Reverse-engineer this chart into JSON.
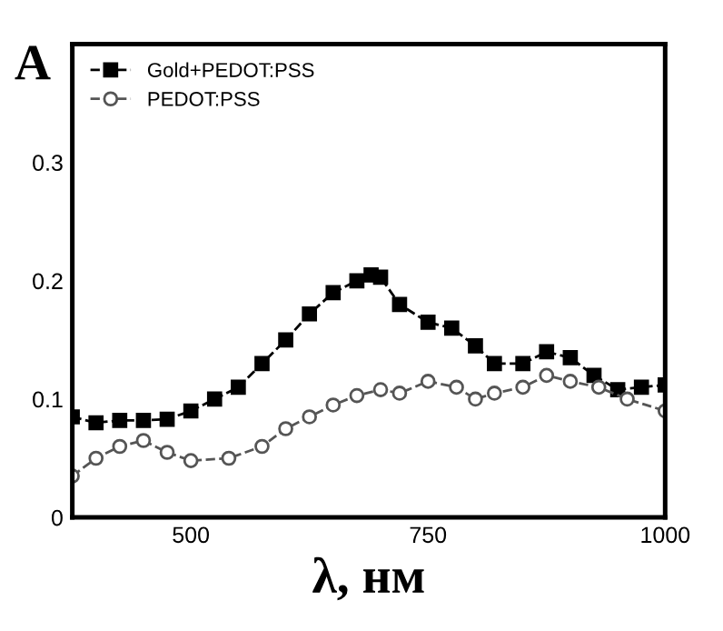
{
  "chart_data": {
    "type": "line",
    "title": "A",
    "xlabel": "λ, нм",
    "xlim": [
      375,
      1000
    ],
    "xticks": [
      500,
      750,
      1000
    ],
    "ylim": [
      0,
      0.4
    ],
    "yticks": [
      0,
      0.1,
      0.2,
      0.3
    ],
    "grid": false,
    "legend": "top left",
    "series": [
      {
        "name": "Gold+PEDOT:PSS",
        "color": "#000000",
        "marker": "square",
        "line_style": "dashed",
        "x": [
          375,
          400,
          425,
          450,
          475,
          500,
          525,
          550,
          575,
          600,
          625,
          650,
          675,
          690,
          700,
          720,
          750,
          775,
          800,
          820,
          850,
          875,
          900,
          925,
          950,
          975,
          1000
        ],
        "values": [
          0.085,
          0.08,
          0.082,
          0.082,
          0.083,
          0.09,
          0.1,
          0.11,
          0.13,
          0.15,
          0.172,
          0.19,
          0.2,
          0.205,
          0.203,
          0.18,
          0.165,
          0.16,
          0.145,
          0.13,
          0.13,
          0.14,
          0.135,
          0.12,
          0.108,
          0.11,
          0.112
        ]
      },
      {
        "name": "PEDOT:PSS",
        "color": "#555555",
        "marker": "circle",
        "line_style": "dashed",
        "x": [
          375,
          400,
          425,
          450,
          475,
          500,
          540,
          575,
          600,
          625,
          650,
          675,
          700,
          720,
          750,
          780,
          800,
          820,
          850,
          875,
          900,
          930,
          960,
          1000
        ],
        "values": [
          0.035,
          0.05,
          0.06,
          0.065,
          0.055,
          0.048,
          0.05,
          0.06,
          0.075,
          0.085,
          0.095,
          0.103,
          0.108,
          0.105,
          0.115,
          0.11,
          0.1,
          0.105,
          0.11,
          0.12,
          0.115,
          0.11,
          0.1,
          0.09
        ]
      }
    ]
  }
}
